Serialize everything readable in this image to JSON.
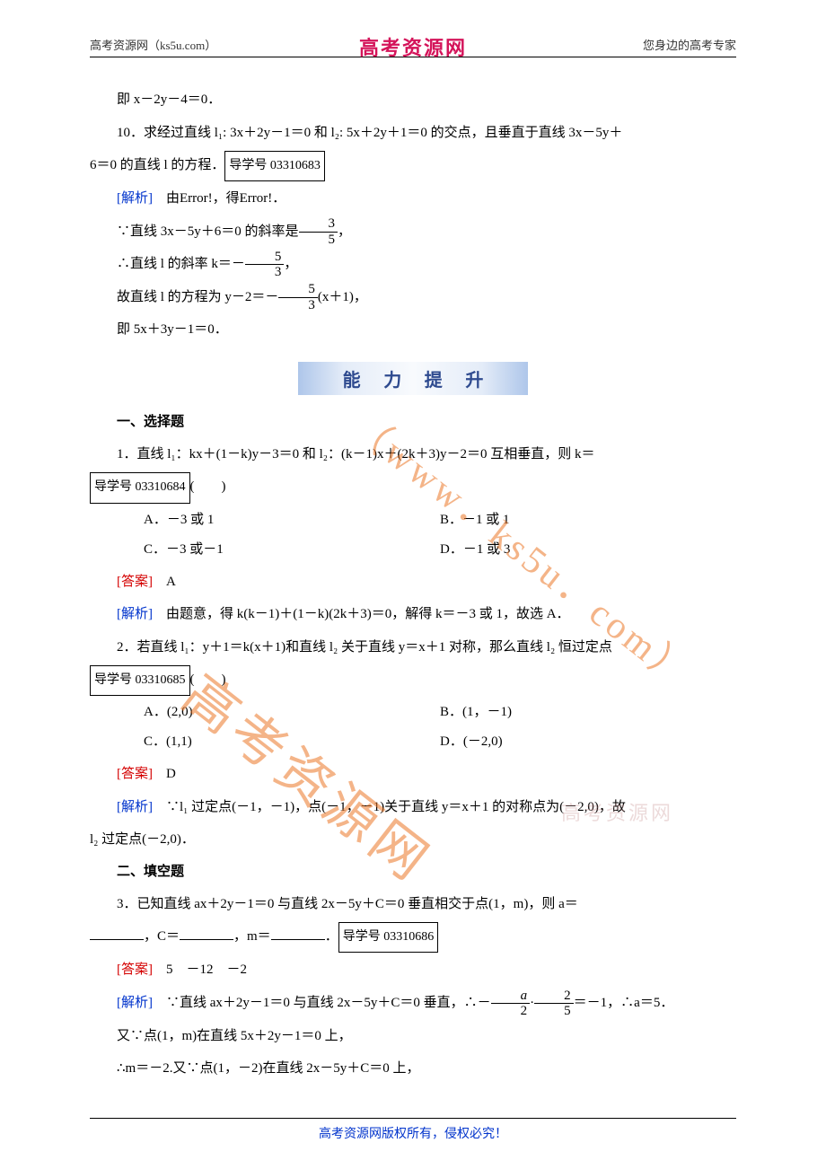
{
  "header": {
    "left": "高考资源网（ks5u.com）",
    "center": "高考资源网",
    "right": "您身边的高考专家"
  },
  "watermark": {
    "big": "高考资源网",
    "url": "（www．ks5u．com）",
    "small": "高考资源网"
  },
  "line1": "即 x－2y－4＝0．",
  "q10a": "10．求经过直线 l₁: 3x＋2y－1＝0 和 l₂: 5x＋2y＋1＝0 的交点，且垂直于直线 3x－5y＋",
  "q10b": "6＝0 的直线 l 的方程．",
  "box1": "导学号 03310683",
  "jx": "[解析]",
  "da": "[答案]",
  "l2": "　由Error!，得Error!．",
  "l3a": "∵直线 3x－5y＋6＝0 的斜率是",
  "l3b": "，",
  "l4a": "∴直线 l 的斜率 k＝－",
  "l4b": "，",
  "l5a": "故直线 l 的方程为 y－2＝－",
  "l5b": "(x＋1)，",
  "l6": "即 5x＋3y－1＝0．",
  "banner": "能 力 提 升",
  "h1": "一、选择题",
  "q1": "1．直线 l₁：kx＋(1－k)y－3＝0 和 l₂：(k－1)x＋(2k＋3)y－2＝0 互相垂直，则 k＝",
  "box2": "导学号 03310684",
  "paren": "(　　)",
  "opt1": {
    "a": "A．－3 或 1",
    "b": "B．－1 或 1",
    "c": "C．－3 或－1",
    "d": "D．－1 或 3"
  },
  "ans1": "　A",
  "jx1": "　由题意，得 k(k－1)＋(1－k)(2k＋3)＝0，解得 k＝－3 或 1，故选 A．",
  "q2": "2．若直线 l₁：y＋1＝k(x＋1)和直线 l₂ 关于直线 y＝x＋1 对称，那么直线 l₂ 恒过定点",
  "box3": "导学号 03310685",
  "opt2": {
    "a": "A．(2,0)",
    "b": "B．(1，－1)",
    "c": "C．(1,1)",
    "d": "D．(－2,0)"
  },
  "ans2": "　D",
  "jx2a": "　∵l₁ 过定点(－1，－1)，点(－1，－1)关于直线 y＝x＋1 的对称点为(－2,0)，故",
  "jx2b": "l₂ 过定点(－2,0)．",
  "h2": "二、填空题",
  "q3a": "3．已知直线 ax＋2y－1＝0 与直线 2x－5y＋C＝0 垂直相交于点(1，m)，则 a＝",
  "q3b": "，C＝",
  "q3c": "，m＝",
  "q3d": "．",
  "box4": "导学号 03310686",
  "ans3": "　5　－12　－2",
  "jx3a": "　∵直线 ax＋2y－1＝0 与直线 2x－5y＋C＝0 垂直，∴－",
  "jx3b": "·",
  "jx3c": "＝－1，∴a＝5．",
  "jx3d": "又∵点(1，m)在直线 5x＋2y－1＝0 上，",
  "jx3e": "∴m＝－2.又∵点(1，－2)在直线 2x－5y＋C＝0 上，",
  "footer": "高考资源网版权所有，侵权必究！",
  "fracs": {
    "f35n": "3",
    "f35d": "5",
    "f53n": "5",
    "f53d": "3",
    "fa2n": "a",
    "fa2d": "2",
    "f25n": "2",
    "f25d": "5"
  },
  "colors": {
    "brand": "#d4145a",
    "blue": "#0033cc",
    "red": "#d40000",
    "banner_text": "#2e4a8f",
    "watermark": "rgba(235,118,38,0.55)"
  }
}
